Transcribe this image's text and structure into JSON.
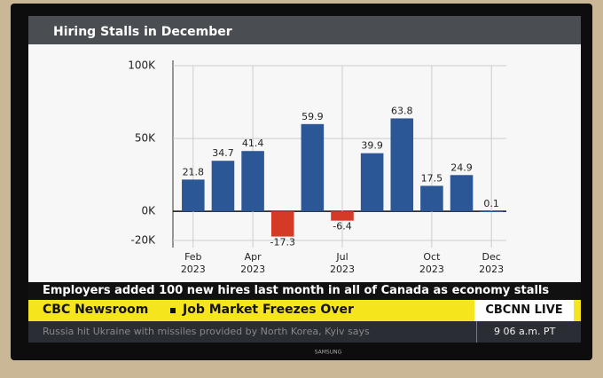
{
  "chart_data": {
    "type": "bar",
    "title": "Hiring Stalls in December",
    "categories": [
      "Feb 2023",
      null,
      "Apr 2023",
      null,
      null,
      "Jul 2023",
      null,
      null,
      "Oct 2023",
      null,
      "Dec 2023"
    ],
    "values": [
      21.8,
      34.7,
      41.4,
      -17.3,
      59.9,
      -6.4,
      39.9,
      63.8,
      17.5,
      24.9,
      0.1
    ],
    "positive_color": "#2b5797",
    "negative_color": "#d43a26",
    "ylim": [
      -20,
      100
    ],
    "yticks": [
      {
        "value": -20,
        "label": "-20K"
      },
      {
        "value": 0,
        "label": "0K"
      },
      {
        "value": 50,
        "label": "50K"
      },
      {
        "value": 100,
        "label": "100K"
      }
    ],
    "grid": true
  },
  "broadcast": {
    "caption": "Employers added 100 new hires last month in all of Canada as economy stalls",
    "show": "CBC Newsroom",
    "headline": "Job Market Freezes Over",
    "logo": "CBCNN LIVE",
    "ticker": "Russia hit Ukraine with missiles provided by North Korea, Kyiv says",
    "time": "9 06 a.m. PT",
    "brand": "SAMSUNG"
  }
}
